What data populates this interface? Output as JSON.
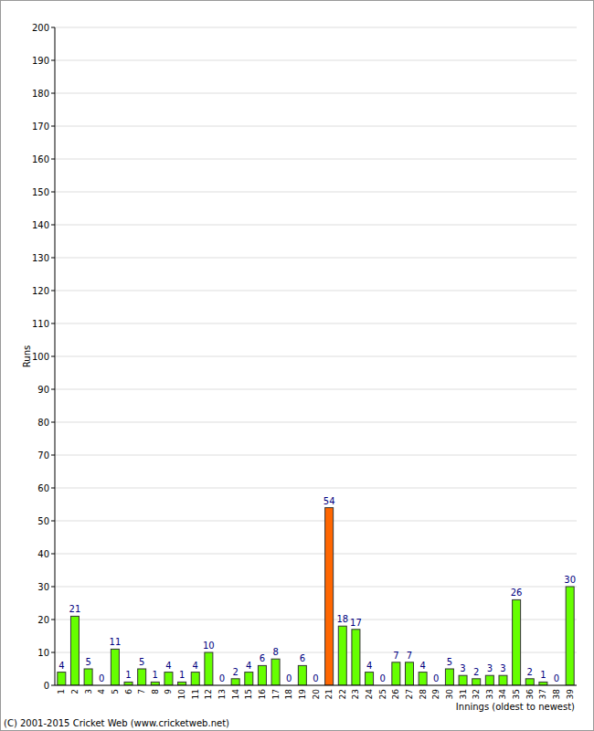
{
  "chart_data": {
    "type": "bar",
    "y_label": "Runs",
    "x_label": "Innings (oldest to newest)",
    "footer": "(C) 2001-2015 Cricket Web (www.cricketweb.net)",
    "categories": [
      "1",
      "2",
      "3",
      "4",
      "5",
      "6",
      "7",
      "8",
      "9",
      "10",
      "11",
      "12",
      "13",
      "14",
      "15",
      "16",
      "17",
      "18",
      "19",
      "20",
      "21",
      "22",
      "23",
      "24",
      "25",
      "26",
      "27",
      "28",
      "29",
      "30",
      "31",
      "32",
      "33",
      "34",
      "35",
      "36",
      "37",
      "38",
      "39"
    ],
    "values": [
      4,
      21,
      5,
      0,
      11,
      1,
      5,
      1,
      4,
      1,
      4,
      10,
      0,
      2,
      4,
      6,
      8,
      0,
      6,
      0,
      54,
      18,
      17,
      4,
      0,
      7,
      7,
      4,
      0,
      5,
      3,
      2,
      3,
      3,
      26,
      2,
      1,
      0,
      30
    ],
    "colors": [
      "#66ff00",
      "#66ff00",
      "#66ff00",
      "#66ff00",
      "#66ff00",
      "#66ff00",
      "#66ff00",
      "#66ff00",
      "#66ff00",
      "#66ff00",
      "#66ff00",
      "#66ff00",
      "#66ff00",
      "#66ff00",
      "#66ff00",
      "#66ff00",
      "#66ff00",
      "#66ff00",
      "#66ff00",
      "#66ff00",
      "#ff6600",
      "#66ff00",
      "#66ff00",
      "#66ff00",
      "#66ff00",
      "#66ff00",
      "#66ff00",
      "#66ff00",
      "#66ff00",
      "#66ff00",
      "#66ff00",
      "#66ff00",
      "#66ff00",
      "#66ff00",
      "#66ff00",
      "#66ff00",
      "#66ff00",
      "#66ff00",
      "#66ff00"
    ],
    "ylim": [
      0,
      200
    ],
    "yticks": [
      0,
      10,
      20,
      30,
      40,
      50,
      60,
      70,
      80,
      90,
      100,
      110,
      120,
      130,
      140,
      150,
      160,
      170,
      180,
      190,
      200
    ],
    "grid": true,
    "data_labels": true
  }
}
